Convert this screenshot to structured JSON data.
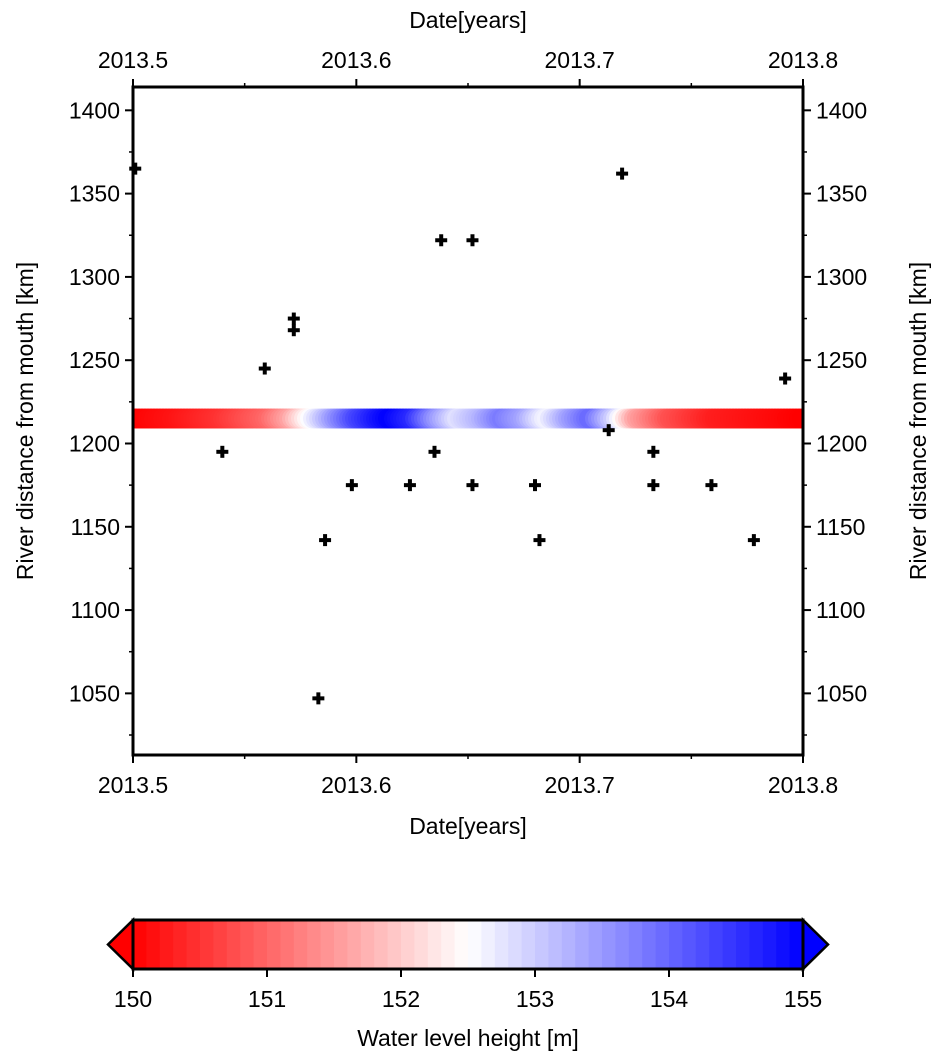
{
  "chart_data": {
    "type": "scatter",
    "xlabel": "Date[years]",
    "ylabel": "River distance from mouth [km]",
    "xlim": [
      2013.5,
      2013.8
    ],
    "ylim": [
      1013,
      1414
    ],
    "xticks": [
      2013.5,
      2013.6,
      2013.7,
      2013.8
    ],
    "xtick_labels": [
      "2013.5",
      "2013.6",
      "2013.7",
      "2013.8"
    ],
    "yticks": [
      1050,
      1100,
      1150,
      1200,
      1250,
      1300,
      1350,
      1400
    ],
    "ytick_labels": [
      "1050",
      "1100",
      "1150",
      "1200",
      "1250",
      "1300",
      "1350",
      "1400"
    ],
    "grid": false,
    "series": [
      {
        "marker": "plus",
        "color": "#000000",
        "points": [
          {
            "x": 2013.501,
            "y": 1365
          },
          {
            "x": 2013.54,
            "y": 1195
          },
          {
            "x": 2013.559,
            "y": 1245
          },
          {
            "x": 2013.572,
            "y": 1275
          },
          {
            "x": 2013.572,
            "y": 1268
          },
          {
            "x": 2013.583,
            "y": 1047
          },
          {
            "x": 2013.586,
            "y": 1142
          },
          {
            "x": 2013.598,
            "y": 1175
          },
          {
            "x": 2013.624,
            "y": 1175
          },
          {
            "x": 2013.635,
            "y": 1195
          },
          {
            "x": 2013.638,
            "y": 1322
          },
          {
            "x": 2013.652,
            "y": 1322
          },
          {
            "x": 2013.652,
            "y": 1175
          },
          {
            "x": 2013.68,
            "y": 1175
          },
          {
            "x": 2013.682,
            "y": 1142
          },
          {
            "x": 2013.713,
            "y": 1208
          },
          {
            "x": 2013.719,
            "y": 1362
          },
          {
            "x": 2013.733,
            "y": 1195
          },
          {
            "x": 2013.733,
            "y": 1175
          },
          {
            "x": 2013.759,
            "y": 1175
          },
          {
            "x": 2013.778,
            "y": 1142
          },
          {
            "x": 2013.792,
            "y": 1239
          }
        ]
      },
      {
        "marker": "circle",
        "colored_by": "water_level",
        "y": 1215,
        "points": [
          {
            "x": 2013.5,
            "z": 150.0
          },
          {
            "x": 2013.52,
            "z": 150.2
          },
          {
            "x": 2013.54,
            "z": 150.5
          },
          {
            "x": 2013.56,
            "z": 151.0
          },
          {
            "x": 2013.57,
            "z": 151.6
          },
          {
            "x": 2013.58,
            "z": 152.6
          },
          {
            "x": 2013.59,
            "z": 153.5
          },
          {
            "x": 2013.6,
            "z": 154.3
          },
          {
            "x": 2013.61,
            "z": 154.8
          },
          {
            "x": 2013.615,
            "z": 155.0
          },
          {
            "x": 2013.625,
            "z": 154.6
          },
          {
            "x": 2013.635,
            "z": 153.6
          },
          {
            "x": 2013.645,
            "z": 152.8
          },
          {
            "x": 2013.655,
            "z": 153.2
          },
          {
            "x": 2013.665,
            "z": 153.8
          },
          {
            "x": 2013.675,
            "z": 153.4
          },
          {
            "x": 2013.685,
            "z": 152.6
          },
          {
            "x": 2013.695,
            "z": 153.4
          },
          {
            "x": 2013.705,
            "z": 154.0
          },
          {
            "x": 2013.715,
            "z": 153.0
          },
          {
            "x": 2013.725,
            "z": 151.6
          },
          {
            "x": 2013.74,
            "z": 150.8
          },
          {
            "x": 2013.76,
            "z": 150.3
          },
          {
            "x": 2013.8,
            "z": 150.0
          }
        ]
      }
    ],
    "colorbar": {
      "label": "Water level height [m]",
      "min": 150,
      "max": 155,
      "ticks": [
        "150",
        "151",
        "152",
        "153",
        "154",
        "155"
      ],
      "color_low": "#ff0000",
      "color_mid": "#ffffff",
      "color_high": "#0000ff"
    }
  }
}
